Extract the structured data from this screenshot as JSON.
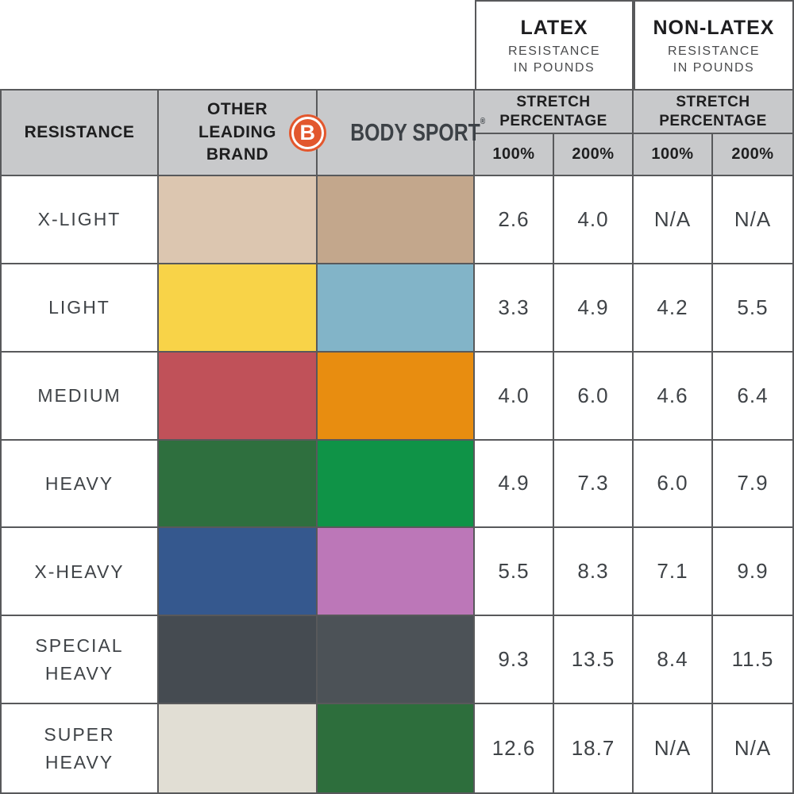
{
  "brand": {
    "name": "BODY SPORT",
    "logo_letter": "B",
    "registered_mark": "®",
    "logo_color": "#e2572e"
  },
  "top_headers": [
    {
      "title": "LATEX",
      "subtitle": [
        "RESISTANCE",
        "IN POUNDS"
      ]
    },
    {
      "title": "NON-LATEX",
      "subtitle": [
        "RESISTANCE",
        "IN POUNDS"
      ]
    }
  ],
  "header": {
    "resistance": "RESISTANCE",
    "other_brand": [
      "OTHER",
      "LEADING",
      "BRAND"
    ],
    "stretch": [
      "STRETCH",
      "PERCENTAGE"
    ],
    "pct100": "100%",
    "pct200": "200%"
  },
  "rows": [
    {
      "label": "X-LIGHT",
      "other_color": "#dcc6b0",
      "bodysport_color": "#c3a78c",
      "latex_100": "2.6",
      "latex_200": "4.0",
      "nonlatex_100": "N/A",
      "nonlatex_200": "N/A"
    },
    {
      "label": "LIGHT",
      "other_color": "#f8d348",
      "bodysport_color": "#82b4c8",
      "latex_100": "3.3",
      "latex_200": "4.9",
      "nonlatex_100": "4.2",
      "nonlatex_200": "5.5"
    },
    {
      "label": "MEDIUM",
      "other_color": "#c05159",
      "bodysport_color": "#e88d10",
      "latex_100": "4.0",
      "latex_200": "6.0",
      "nonlatex_100": "4.6",
      "nonlatex_200": "6.4"
    },
    {
      "label": "HEAVY",
      "other_color": "#2e6f3e",
      "bodysport_color": "#0f9347",
      "latex_100": "4.9",
      "latex_200": "7.3",
      "nonlatex_100": "6.0",
      "nonlatex_200": "7.9"
    },
    {
      "label": "X-HEAVY",
      "other_color": "#35588e",
      "bodysport_color": "#bc77b8",
      "latex_100": "5.5",
      "latex_200": "8.3",
      "nonlatex_100": "7.1",
      "nonlatex_200": "9.9"
    },
    {
      "label": "SPECIAL HEAVY",
      "other_color": "#454b51",
      "bodysport_color": "#4c5257",
      "latex_100": "9.3",
      "latex_200": "13.5",
      "nonlatex_100": "8.4",
      "nonlatex_200": "11.5"
    },
    {
      "label": "SUPER HEAVY",
      "other_color": "#e1ded4",
      "bodysport_color": "#2d6e3c",
      "latex_100": "12.6",
      "latex_200": "18.7",
      "nonlatex_100": "N/A",
      "nonlatex_200": "N/A"
    }
  ],
  "colors": {
    "header_bg": "#c8c9cb",
    "border": "#58595b",
    "text_dark": "#3f4347",
    "brand_orange": "#e2572e"
  },
  "chart_data": {
    "type": "table",
    "columns": [
      "RESISTANCE",
      "OTHER LEADING BRAND",
      "BODY SPORT",
      "LATEX RESISTANCE IN POUNDS — STRETCH 100%",
      "LATEX RESISTANCE IN POUNDS — STRETCH 200%",
      "NON-LATEX RESISTANCE IN POUNDS — STRETCH 100%",
      "NON-LATEX RESISTANCE IN POUNDS — STRETCH 200%"
    ],
    "rows": [
      [
        "X-LIGHT",
        "tan swatch",
        "tan swatch",
        "2.6",
        "4.0",
        "N/A",
        "N/A"
      ],
      [
        "LIGHT",
        "yellow swatch",
        "light-blue swatch",
        "3.3",
        "4.9",
        "4.2",
        "5.5"
      ],
      [
        "MEDIUM",
        "red swatch",
        "orange swatch",
        "4.0",
        "6.0",
        "4.6",
        "6.4"
      ],
      [
        "HEAVY",
        "dark-green swatch",
        "green swatch",
        "4.9",
        "7.3",
        "6.0",
        "7.9"
      ],
      [
        "X-HEAVY",
        "blue swatch",
        "orchid swatch",
        "5.5",
        "8.3",
        "7.1",
        "9.9"
      ],
      [
        "SPECIAL HEAVY",
        "dark-gray swatch",
        "dark-gray swatch",
        "9.3",
        "13.5",
        "8.4",
        "11.5"
      ],
      [
        "SUPER HEAVY",
        "off-white swatch",
        "forest-green swatch",
        "12.6",
        "18.7",
        "N/A",
        "N/A"
      ]
    ]
  }
}
